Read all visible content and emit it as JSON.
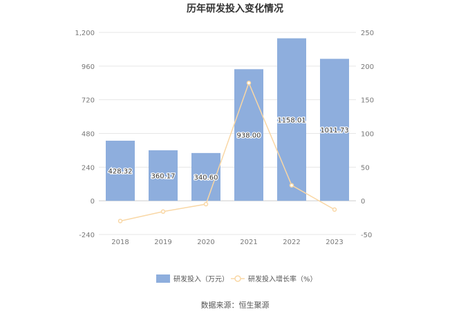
{
  "chart_data": {
    "type": "bar",
    "title": "历年研发投入变化情况",
    "categories": [
      "2018",
      "2019",
      "2020",
      "2021",
      "2022",
      "2023"
    ],
    "series": [
      {
        "name": "研发投入（万元）",
        "type": "bar",
        "axis": "left",
        "values": [
          428.32,
          360.17,
          340.6,
          938.0,
          1158.01,
          1011.73
        ],
        "value_labels": [
          "428.32",
          "360.17",
          "340.60",
          "938.00",
          "1158.01",
          "1011.73"
        ],
        "color": "#8eaedd"
      },
      {
        "name": "研发投入增长率（%）",
        "type": "line",
        "axis": "right",
        "values": [
          -30,
          -16,
          -5,
          175,
          23,
          -13
        ],
        "color": "#f9d7a5"
      }
    ],
    "y_left": {
      "min": -240,
      "max": 1200,
      "ticks": [
        -240,
        0,
        240,
        480,
        720,
        960,
        1200
      ],
      "tick_labels": [
        "-240",
        "0",
        "240",
        "480",
        "720",
        "960",
        "1,200"
      ]
    },
    "y_right": {
      "min": -50,
      "max": 250,
      "ticks": [
        -50,
        0,
        50,
        100,
        150,
        200,
        250
      ],
      "tick_labels": [
        "-50",
        "0",
        "50",
        "100",
        "150",
        "200",
        "250"
      ]
    },
    "grid": true,
    "legend_position": "bottom"
  },
  "source": "数据来源：恒生聚源",
  "colors": {
    "bar": "#8eaedd",
    "line": "#f9d7a5",
    "grid": "#e6e6e6",
    "axis_text": "#777777",
    "title": "#333333"
  }
}
